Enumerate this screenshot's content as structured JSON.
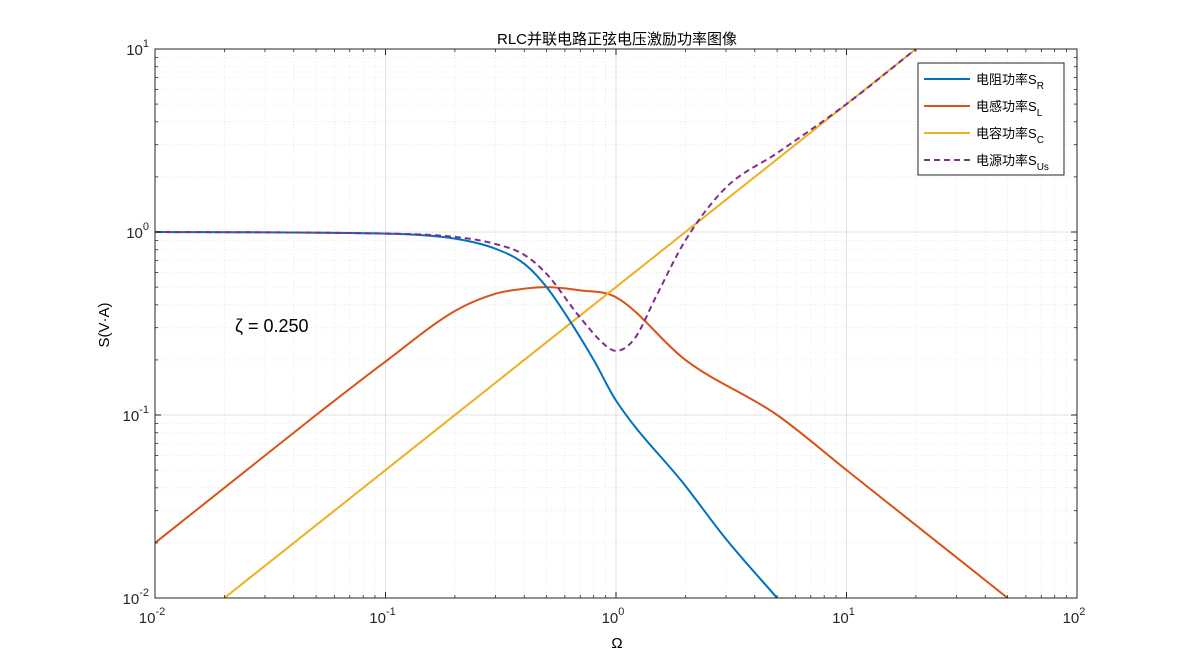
{
  "chart_data": {
    "type": "line",
    "title": "RLC并联电路正弦电压激励功率图像",
    "xlabel": "Ω",
    "ylabel": "S(V·A)",
    "xscale": "log",
    "yscale": "log",
    "xlim": [
      0.01,
      100
    ],
    "ylim": [
      0.01,
      10
    ],
    "grid": true,
    "minor_grid": true,
    "legend_position": "top-right",
    "annotation": "ζ = 0.250",
    "x_ticks": [
      {
        "base": "10",
        "exp": "-2"
      },
      {
        "base": "10",
        "exp": "-1"
      },
      {
        "base": "10",
        "exp": "0"
      },
      {
        "base": "10",
        "exp": "1"
      },
      {
        "base": "10",
        "exp": "2"
      }
    ],
    "y_ticks": [
      {
        "base": "10",
        "exp": "-2"
      },
      {
        "base": "10",
        "exp": "-1"
      },
      {
        "base": "10",
        "exp": "0"
      },
      {
        "base": "10",
        "exp": "1"
      }
    ],
    "series": [
      {
        "name": "电阻功率",
        "symbol": "S",
        "sub": "R",
        "color": "#0072BD",
        "style": "solid",
        "points": [
          [
            0.01,
            1.0
          ],
          [
            0.1,
            0.98
          ],
          [
            0.2,
            0.92
          ],
          [
            0.3,
            0.81
          ],
          [
            0.4,
            0.67
          ],
          [
            0.5,
            0.5
          ],
          [
            0.6,
            0.36
          ],
          [
            0.8,
            0.2
          ],
          [
            1.0,
            0.12
          ],
          [
            2.0,
            0.041
          ],
          [
            3.0,
            0.021
          ],
          [
            5.0,
            0.01
          ]
        ]
      },
      {
        "name": "电感功率",
        "symbol": "S",
        "sub": "L",
        "color": "#D95319",
        "style": "solid",
        "points": [
          [
            0.01,
            0.02
          ],
          [
            0.02,
            0.04
          ],
          [
            0.05,
            0.1
          ],
          [
            0.1,
            0.196
          ],
          [
            0.2,
            0.37
          ],
          [
            0.3,
            0.46
          ],
          [
            0.4,
            0.49
          ],
          [
            0.5,
            0.5
          ],
          [
            0.7,
            0.48
          ],
          [
            1.0,
            0.44
          ],
          [
            2.0,
            0.2
          ],
          [
            5.0,
            0.1
          ],
          [
            10.0,
            0.05
          ],
          [
            20.0,
            0.025
          ],
          [
            50.0,
            0.01
          ]
        ]
      },
      {
        "name": "电容功率",
        "symbol": "S",
        "sub": "C",
        "color": "#EDB120",
        "style": "solid",
        "points": [
          [
            0.02,
            0.01
          ],
          [
            0.1,
            0.05
          ],
          [
            1.0,
            0.5
          ],
          [
            10.0,
            5.0
          ],
          [
            20.0,
            10.0
          ]
        ]
      },
      {
        "name": "电源功率",
        "symbol": "S",
        "sub": "Us",
        "color": "#7E2F8E",
        "style": "dashed",
        "points": [
          [
            0.01,
            1.0
          ],
          [
            0.1,
            0.98
          ],
          [
            0.2,
            0.94
          ],
          [
            0.3,
            0.86
          ],
          [
            0.4,
            0.75
          ],
          [
            0.5,
            0.59
          ],
          [
            0.7,
            0.34
          ],
          [
            0.9,
            0.24
          ],
          [
            1.0,
            0.224
          ],
          [
            1.2,
            0.26
          ],
          [
            1.5,
            0.45
          ],
          [
            2.0,
            0.9
          ],
          [
            3.0,
            1.75
          ],
          [
            5.0,
            2.7
          ],
          [
            10.0,
            5.0
          ],
          [
            20.0,
            10.0
          ]
        ]
      }
    ]
  }
}
